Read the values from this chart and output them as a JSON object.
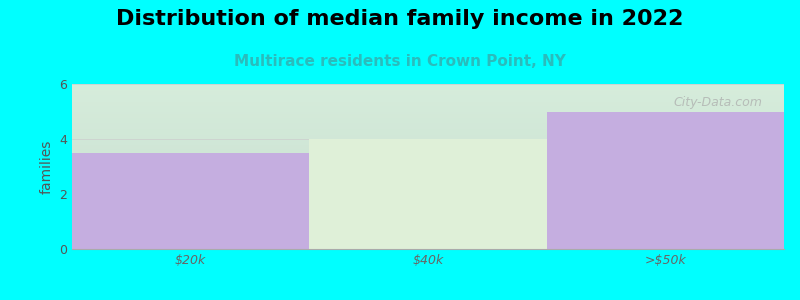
{
  "title": "Distribution of median family income in 2022",
  "subtitle": "Multirace residents in Crown Point, NY",
  "categories": [
    "$20k",
    "$40k",
    ">$50k"
  ],
  "values": [
    3.5,
    4.0,
    5.0
  ],
  "bar_colors": [
    "#c5aee0",
    "#dff0d8",
    "#c5aee0"
  ],
  "ylim": [
    0,
    6
  ],
  "yticks": [
    0,
    2,
    4,
    6
  ],
  "ylabel": "families",
  "background_color": "#00ffff",
  "plot_bg_color": "#f8fdf8",
  "title_fontsize": 16,
  "subtitle_fontsize": 11,
  "subtitle_color": "#2abcbc",
  "watermark": "City-Data.com",
  "bar_width": 1.0
}
